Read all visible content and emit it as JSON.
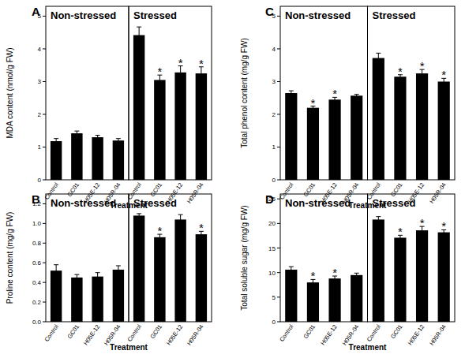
{
  "chart_data": [
    {
      "type": "bar",
      "title": "A",
      "y_label": "MDA content (nmol/g FW)",
      "x_label": "Treatment",
      "categories": [
        "Control",
        "GC01",
        "H05E-12",
        "H05R-04"
      ],
      "ylim": [
        0,
        5.3
      ],
      "yticks": [
        0,
        1,
        2,
        3,
        4,
        5
      ],
      "series": [
        {
          "name": "Non-stressed",
          "color": "#000000",
          "values": [
            1.18,
            1.42,
            1.3,
            1.2
          ],
          "errors": [
            0.08,
            0.07,
            0.06,
            0.06
          ],
          "significance": [
            null,
            null,
            null,
            null
          ]
        },
        {
          "name": "Stressed",
          "color": "#000000",
          "values": [
            4.42,
            3.05,
            3.28,
            3.25
          ],
          "errors": [
            0.25,
            0.15,
            0.2,
            0.2
          ],
          "significance": [
            null,
            "*",
            "*",
            "*"
          ]
        }
      ]
    },
    {
      "type": "bar",
      "title": "B",
      "y_label": "Proline content (mg/g FW)",
      "x_label": "Treatment",
      "categories": [
        "Control",
        "GC01",
        "H05E-12",
        "H05R-04"
      ],
      "ylim": [
        0,
        1.3
      ],
      "yticks": [
        {
          "value": 0,
          "label": "0.0"
        },
        0.2,
        0.4,
        0.6,
        0.8,
        {
          "value": 1,
          "label": "1.0"
        },
        1.2
      ],
      "series": [
        {
          "name": "Non-stressed",
          "color": "#000000",
          "values": [
            0.52,
            0.45,
            0.46,
            0.53
          ],
          "errors": [
            0.06,
            0.03,
            0.04,
            0.04
          ],
          "significance": [
            null,
            null,
            null,
            null
          ]
        },
        {
          "name": "Stressed",
          "color": "#000000",
          "values": [
            1.08,
            0.86,
            1.04,
            0.89
          ],
          "errors": [
            0.02,
            0.03,
            0.05,
            0.03
          ],
          "significance": [
            null,
            "*",
            null,
            "*"
          ]
        }
      ]
    },
    {
      "type": "bar",
      "title": "C",
      "y_label": "Total phenol content (mg/g FW)",
      "x_label": "Treatment",
      "categories": [
        "Control",
        "GC01",
        "H05E-12",
        "H05R-04"
      ],
      "ylim": [
        0,
        5.3
      ],
      "yticks": [
        0,
        1,
        2,
        3,
        4,
        5
      ],
      "series": [
        {
          "name": "Non-stressed",
          "color": "#000000",
          "values": [
            2.65,
            2.2,
            2.45,
            2.57
          ],
          "errors": [
            0.07,
            0.05,
            0.07,
            0.04
          ],
          "significance": [
            null,
            "*",
            "*",
            null
          ]
        },
        {
          "name": "Stressed",
          "color": "#000000",
          "values": [
            3.72,
            3.15,
            3.25,
            3.0
          ],
          "errors": [
            0.15,
            0.06,
            0.12,
            0.1
          ],
          "significance": [
            null,
            "*",
            "*",
            "*"
          ]
        }
      ]
    },
    {
      "type": "bar",
      "title": "D",
      "y_label": "Total soluble sugar (mg/g FW)",
      "x_label": "Treatment",
      "categories": [
        "Control",
        "GC01",
        "H05E-12",
        "H05R-04"
      ],
      "ylim": [
        0,
        26
      ],
      "yticks": [
        0,
        5,
        10,
        15,
        20,
        25
      ],
      "series": [
        {
          "name": "Non-stressed",
          "color": "#000000",
          "values": [
            10.6,
            8.0,
            8.8,
            9.5
          ],
          "errors": [
            0.6,
            0.6,
            0.5,
            0.4
          ],
          "significance": [
            null,
            "*",
            "*",
            null
          ]
        },
        {
          "name": "Stressed",
          "color": "#000000",
          "values": [
            20.8,
            17.1,
            18.6,
            18.2
          ],
          "errors": [
            0.6,
            0.5,
            0.8,
            0.5
          ],
          "significance": [
            null,
            "*",
            "*",
            "*"
          ]
        }
      ]
    }
  ]
}
